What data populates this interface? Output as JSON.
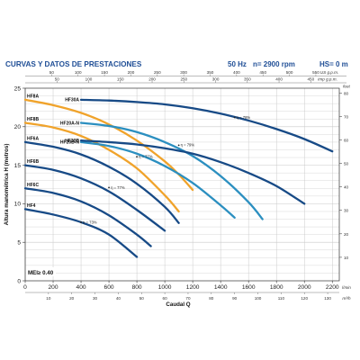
{
  "header": {
    "title": "CURVAS Y DATOS DE PRESTACIONES",
    "frequency": "50 Hz",
    "speed": "n= 2900 rpm",
    "hs": "HS= 0 m"
  },
  "colors": {
    "blue_dark": "#174a86",
    "blue_mid": "#1f6fa6",
    "cyan": "#2b8fc0",
    "orange": "#f0a32b",
    "title": "#1f4e96",
    "grid": "#c9c9c9"
  },
  "chart_data": {
    "type": "line",
    "ylabel": "Altura manométrica H (metros)",
    "xlabel": "Caudal Q",
    "xlim": [
      0,
      2250
    ],
    "ylim": [
      0,
      25
    ],
    "x_ticks": [
      "0",
      "200",
      "400",
      "600",
      "800",
      "1000",
      "1200",
      "1400",
      "1600",
      "1800",
      "2000",
      "2200"
    ],
    "x_unit": "l/min",
    "y_ticks": [
      "0",
      "5",
      "10",
      "15",
      "20",
      "25"
    ],
    "top_ticks": [
      {
        "label": "50",
        "q": 189.3
      },
      {
        "label": "100",
        "q": 378.5
      },
      {
        "label": "150",
        "q": 567.8
      },
      {
        "label": "200",
        "q": 757.1
      },
      {
        "label": "250",
        "q": 946.4
      },
      {
        "label": "300",
        "q": 1135.6
      },
      {
        "label": "350",
        "q": 1324.9
      },
      {
        "label": "400",
        "q": 1514.2
      },
      {
        "label": "450",
        "q": 1703.4
      },
      {
        "label": "500",
        "q": 1892.7
      },
      {
        "label": "550",
        "q": 2082.0
      }
    ],
    "top_unit_us": "US g.p.m.",
    "top2_ticks": [
      {
        "label": "50",
        "q": 227.3
      },
      {
        "label": "100",
        "q": 454.6
      },
      {
        "label": "150",
        "q": 681.9
      },
      {
        "label": "200",
        "q": 909.2
      },
      {
        "label": "250",
        "q": 1136.5
      },
      {
        "label": "300",
        "q": 1363.8
      },
      {
        "label": "350",
        "q": 1591.1
      },
      {
        "label": "400",
        "q": 1818.4
      },
      {
        "label": "450",
        "q": 2045.7
      }
    ],
    "top_unit_imp": "Imp g.p.m.",
    "bottom2_ticks": [
      {
        "label": "10",
        "q": 166.7
      },
      {
        "label": "20",
        "q": 333.3
      },
      {
        "label": "30",
        "q": 500
      },
      {
        "label": "40",
        "q": 666.7
      },
      {
        "label": "50",
        "q": 833.3
      },
      {
        "label": "60",
        "q": 1000
      },
      {
        "label": "70",
        "q": 1166.7
      },
      {
        "label": "80",
        "q": 1333.3
      },
      {
        "label": "90",
        "q": 1500
      },
      {
        "label": "100",
        "q": 1666.7
      },
      {
        "label": "110",
        "q": 1833.3
      },
      {
        "label": "120",
        "q": 2000
      },
      {
        "label": "130",
        "q": 2166.7
      }
    ],
    "bottom2_unit": "m³/h",
    "right_ticks": [
      {
        "label": "10",
        "h": 3.048
      },
      {
        "label": "20",
        "h": 6.096
      },
      {
        "label": "30",
        "h": 9.144
      },
      {
        "label": "40",
        "h": 12.192
      },
      {
        "label": "50",
        "h": 15.24
      },
      {
        "label": "60",
        "h": 18.288
      },
      {
        "label": "70",
        "h": 21.336
      },
      {
        "label": "80",
        "h": 24.384
      }
    ],
    "right_unit": "feet",
    "mei": "MEI≥ 0.40",
    "series": [
      {
        "name": "HF8A",
        "color": "#f0a32b",
        "x": [
          0,
          200,
          400,
          600,
          800,
          1000,
          1100,
          1200
        ],
        "y": [
          23.5,
          22.8,
          21.8,
          20.3,
          18.2,
          15.5,
          13.8,
          11.8
        ]
      },
      {
        "name": "HF8B",
        "color": "#f0a32b",
        "x": [
          0,
          200,
          400,
          600,
          800,
          1000,
          1100
        ],
        "y": [
          20.5,
          19.9,
          18.8,
          17.0,
          14.6,
          11.1,
          9.0
        ]
      },
      {
        "name": "HF20A-N",
        "color": "#2b8fc0",
        "x": [
          400,
          600,
          800,
          1000,
          1200,
          1400,
          1600,
          1700
        ],
        "y": [
          20.5,
          20.1,
          19.3,
          18.0,
          16.2,
          13.6,
          10.2,
          8.0
        ]
      },
      {
        "name": "HF20B-N",
        "color": "#2b8fc0",
        "x": [
          400,
          600,
          800,
          1000,
          1200,
          1400,
          1500
        ],
        "y": [
          18.0,
          17.5,
          16.5,
          14.9,
          12.7,
          9.8,
          8.2
        ]
      },
      {
        "name": "HF30A",
        "color": "#174a86",
        "x": [
          400,
          600,
          800,
          1000,
          1200,
          1400,
          1600,
          1800,
          2000,
          2200
        ],
        "y": [
          23.5,
          23.4,
          23.2,
          22.9,
          22.4,
          21.7,
          20.8,
          19.7,
          18.4,
          16.8
        ]
      },
      {
        "name": "HF30B",
        "color": "#174a86",
        "x": [
          400,
          600,
          800,
          1000,
          1200,
          1400,
          1600,
          1800,
          2000
        ],
        "y": [
          18.2,
          18.0,
          17.7,
          17.2,
          16.5,
          15.4,
          14.0,
          12.3,
          10.0
        ]
      },
      {
        "name": "HF6A",
        "color": "#174a86",
        "x": [
          0,
          200,
          400,
          600,
          800,
          1000,
          1100
        ],
        "y": [
          18.0,
          17.4,
          16.4,
          14.8,
          12.6,
          9.6,
          7.5
        ]
      },
      {
        "name": "HF6B",
        "color": "#174a86",
        "x": [
          0,
          200,
          400,
          600,
          800,
          1000
        ],
        "y": [
          15.0,
          14.4,
          13.3,
          11.6,
          9.2,
          6.5
        ]
      },
      {
        "name": "HF6C",
        "color": "#174a86",
        "x": [
          0,
          200,
          400,
          600,
          800,
          900
        ],
        "y": [
          12.0,
          11.4,
          10.3,
          8.5,
          6.0,
          4.5
        ]
      },
      {
        "name": "HF4",
        "color": "#174a86",
        "x": [
          0,
          200,
          400,
          600,
          800
        ],
        "y": [
          9.3,
          8.6,
          7.6,
          6.0,
          3.1
        ]
      }
    ],
    "efficiency_labels": [
      {
        "text": "η = 78%",
        "x": 1500,
        "y": 21.2
      },
      {
        "text": "η = 77%",
        "x": 800,
        "y": 16.1
      },
      {
        "text": "η = 79%",
        "x": 1100,
        "y": 17.6
      },
      {
        "text": "η = 77%",
        "x": 600,
        "y": 12.1
      },
      {
        "text": "η = 73%",
        "x": 400,
        "y": 7.6
      }
    ]
  }
}
